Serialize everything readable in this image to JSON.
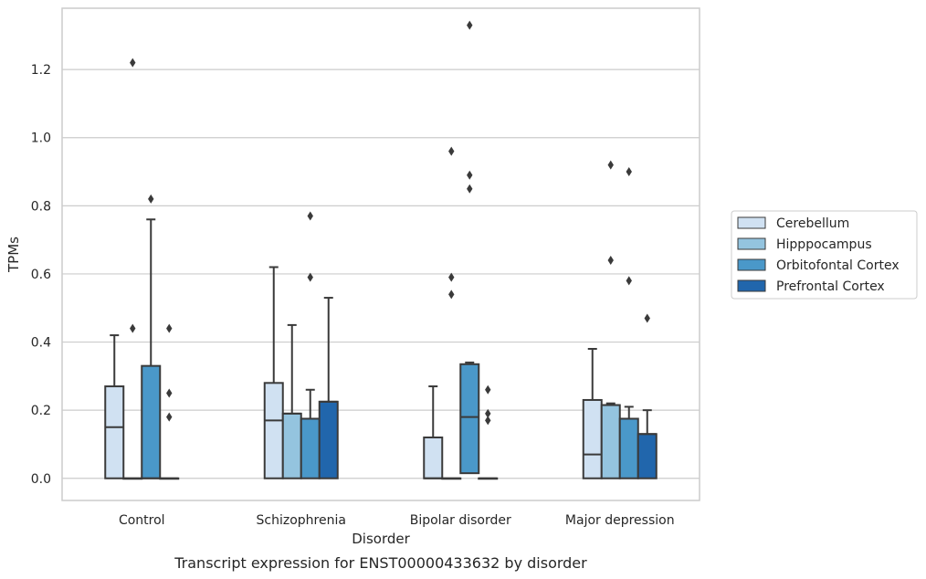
{
  "caption": "Transcript expression for ENST00000433632 by disorder",
  "chart_data": {
    "type": "boxplot",
    "xlabel": "Disorder",
    "ylabel": "TPMs",
    "ylim": [
      -0.065,
      1.38
    ],
    "yticks": [
      "0.0",
      "0.2",
      "0.4",
      "0.6",
      "0.8",
      "1.0",
      "1.2"
    ],
    "grid": "horizontal",
    "legend_position": "right",
    "categories": [
      "Control",
      "Schizophrenia",
      "Bipolar disorder",
      "Major depression"
    ],
    "series": [
      {
        "name": "Cerebellum",
        "color": "#d0e1f2",
        "boxes": [
          {
            "q1": 0.0,
            "median": 0.15,
            "q3": 0.27,
            "whisker_low": 0.0,
            "whisker_high": 0.42,
            "outliers": []
          },
          {
            "q1": 0.0,
            "median": 0.17,
            "q3": 0.28,
            "whisker_low": 0.0,
            "whisker_high": 0.62,
            "outliers": []
          },
          {
            "q1": 0.0,
            "median": 0.0,
            "q3": 0.12,
            "whisker_low": 0.0,
            "whisker_high": 0.27,
            "outliers": []
          },
          {
            "q1": 0.0,
            "median": 0.07,
            "q3": 0.23,
            "whisker_low": 0.0,
            "whisker_high": 0.38,
            "outliers": []
          }
        ]
      },
      {
        "name": "Hipppocampus",
        "color": "#94c4df",
        "boxes": [
          {
            "q1": 0.0,
            "median": 0.0,
            "q3": 0.0,
            "whisker_low": 0.0,
            "whisker_high": 0.0,
            "outliers": [
              0.44,
              1.22
            ]
          },
          {
            "q1": 0.0,
            "median": 0.19,
            "q3": 0.19,
            "whisker_low": 0.0,
            "whisker_high": 0.45,
            "outliers": []
          },
          {
            "q1": 0.0,
            "median": 0.0,
            "q3": 0.0,
            "whisker_low": 0.0,
            "whisker_high": 0.0,
            "outliers": [
              0.54,
              0.59,
              0.96
            ]
          },
          {
            "q1": 0.0,
            "median": 0.215,
            "q3": 0.215,
            "whisker_low": 0.0,
            "whisker_high": 0.22,
            "outliers": [
              0.64,
              0.92
            ]
          }
        ]
      },
      {
        "name": "Orbitofontal Cortex",
        "color": "#4a98c9",
        "boxes": [
          {
            "q1": 0.0,
            "median": 0.0,
            "q3": 0.33,
            "whisker_low": 0.0,
            "whisker_high": 0.76,
            "outliers": [
              0.82
            ]
          },
          {
            "q1": 0.0,
            "median": 0.175,
            "q3": 0.175,
            "whisker_low": 0.0,
            "whisker_high": 0.26,
            "outliers": [
              0.59,
              0.77
            ]
          },
          {
            "q1": 0.015,
            "median": 0.18,
            "q3": 0.335,
            "whisker_low": 0.0,
            "whisker_high": 0.34,
            "outliers": [
              0.85,
              0.89,
              1.33
            ]
          },
          {
            "q1": 0.0,
            "median": 0.175,
            "q3": 0.175,
            "whisker_low": 0.0,
            "whisker_high": 0.21,
            "outliers": [
              0.58,
              0.9
            ]
          }
        ]
      },
      {
        "name": "Prefrontal Cortex",
        "color": "#2166ac",
        "boxes": [
          {
            "q1": 0.0,
            "median": 0.0,
            "q3": 0.0,
            "whisker_low": 0.0,
            "whisker_high": 0.0,
            "outliers": [
              0.18,
              0.25,
              0.44
            ]
          },
          {
            "q1": 0.0,
            "median": 0.225,
            "q3": 0.225,
            "whisker_low": 0.0,
            "whisker_high": 0.53,
            "outliers": []
          },
          {
            "q1": 0.0,
            "median": 0.0,
            "q3": 0.0,
            "whisker_low": 0.0,
            "whisker_high": 0.0,
            "outliers": [
              0.17,
              0.19,
              0.26
            ]
          },
          {
            "q1": 0.0,
            "median": 0.13,
            "q3": 0.13,
            "whisker_low": 0.0,
            "whisker_high": 0.2,
            "outliers": [
              0.47
            ]
          }
        ]
      }
    ]
  }
}
